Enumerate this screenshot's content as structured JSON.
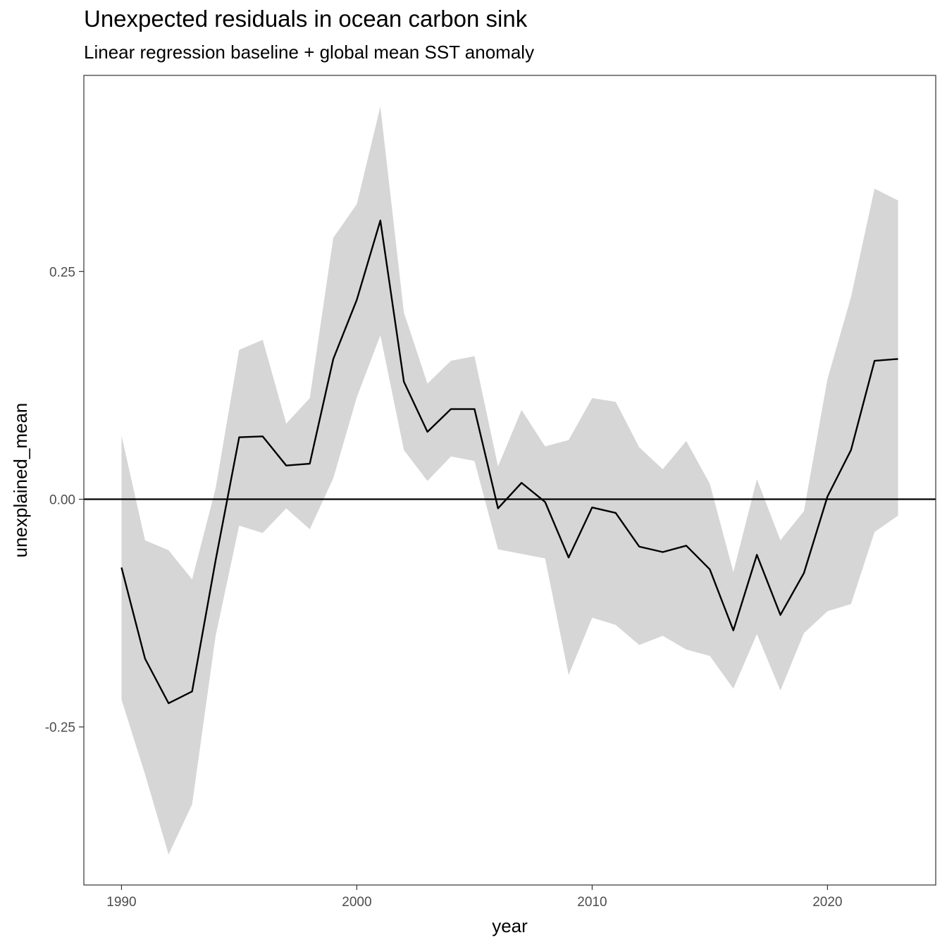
{
  "chart_data": {
    "type": "line",
    "title": "Unexpected residuals in ocean carbon sink",
    "subtitle": "Linear regression baseline + global mean SST anomaly",
    "xlabel": "year",
    "ylabel": "unexplained_mean",
    "xlim": [
      1988.4,
      2024.6
    ],
    "ylim": [
      -0.4235,
      0.4653
    ],
    "x_ticks": [
      1990,
      2000,
      2010,
      2020
    ],
    "x_tick_labels": [
      "1990",
      "2000",
      "2010",
      "2020"
    ],
    "y_ticks": [
      -0.25,
      0,
      0.25
    ],
    "y_tick_labels": [
      "-0.25",
      "0.00",
      "0.25"
    ],
    "grid": false,
    "reference_line_y": 0,
    "series": [
      {
        "type": "line",
        "color": "#000000",
        "x": [
          1990,
          1991,
          1992,
          1993,
          1994,
          1995,
          1996,
          1997,
          1998,
          1999,
          2000,
          2001,
          2002,
          2003,
          2004,
          2005,
          2006,
          2007,
          2008,
          2009,
          2010,
          2011,
          2012,
          2013,
          2014,
          2015,
          2016,
          2017,
          2018,
          2019,
          2020,
          2021,
          2022,
          2023
        ],
        "values": [
          -0.075,
          -0.175,
          -0.224,
          -0.211,
          -0.067,
          0.068,
          0.069,
          0.037,
          0.039,
          0.154,
          0.219,
          0.306,
          0.129,
          0.074,
          0.099,
          0.099,
          -0.01,
          0.018,
          -0.003,
          -0.064,
          -0.009,
          -0.015,
          -0.052,
          -0.058,
          -0.051,
          -0.077,
          -0.144,
          -0.061,
          -0.127,
          -0.081,
          0.003,
          0.054,
          0.152,
          0.154
        ]
      },
      {
        "type": "ribbon",
        "color": "#d6d6d6",
        "x": [
          1990,
          1991,
          1992,
          1993,
          1994,
          1995,
          1996,
          1997,
          1998,
          1999,
          2000,
          2001,
          2002,
          2003,
          2004,
          2005,
          2006,
          2007,
          2008,
          2009,
          2010,
          2011,
          2012,
          2013,
          2014,
          2015,
          2016,
          2017,
          2018,
          2019,
          2020,
          2021,
          2022,
          2023
        ],
        "lower": [
          -0.22,
          -0.302,
          -0.39,
          -0.335,
          -0.15,
          -0.029,
          -0.037,
          -0.01,
          -0.033,
          0.023,
          0.112,
          0.18,
          0.054,
          0.02,
          0.047,
          0.042,
          -0.055,
          -0.06,
          -0.065,
          -0.193,
          -0.13,
          -0.138,
          -0.16,
          -0.15,
          -0.165,
          -0.172,
          -0.208,
          -0.148,
          -0.21,
          -0.147,
          -0.123,
          -0.115,
          -0.036,
          -0.018
        ],
        "upper": [
          0.07,
          -0.045,
          -0.056,
          -0.088,
          0.012,
          0.164,
          0.175,
          0.083,
          0.111,
          0.287,
          0.324,
          0.431,
          0.205,
          0.127,
          0.152,
          0.157,
          0.036,
          0.098,
          0.058,
          0.065,
          0.111,
          0.107,
          0.057,
          0.033,
          0.064,
          0.017,
          -0.08,
          0.022,
          -0.045,
          -0.013,
          0.132,
          0.222,
          0.341,
          0.328
        ]
      }
    ]
  }
}
